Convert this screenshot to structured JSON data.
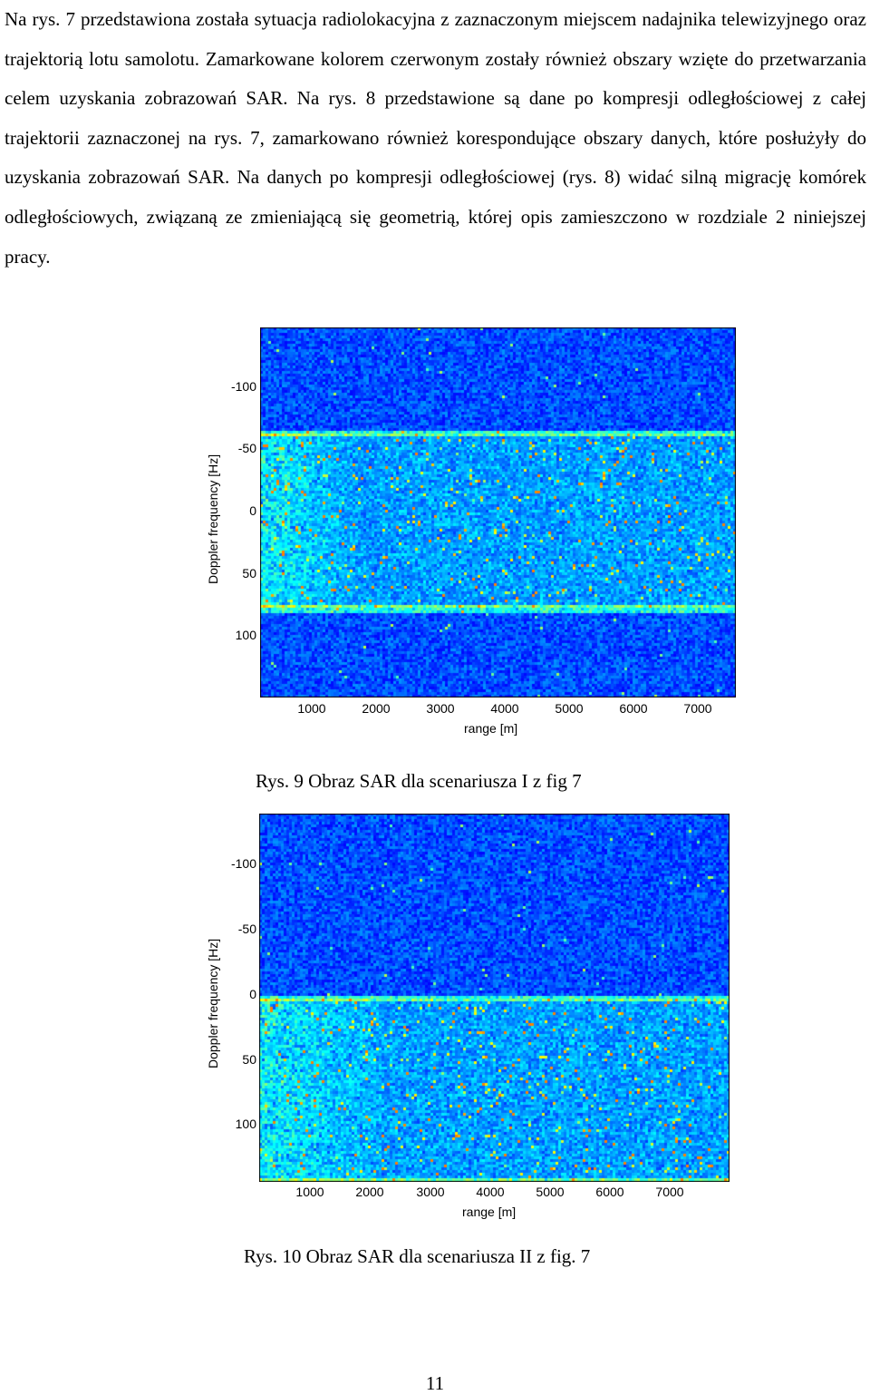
{
  "paragraph": "Na rys. 7 przedstawiona została sytuacja radiolokacyjna z zaznaczonym miejscem nadajnika telewizyjnego oraz trajektorią lotu samolotu. Zamarkowane kolorem czerwonym zostały również obszary wzięte do przetwarzania celem uzyskania zobrazowań SAR. Na rys. 8 przedstawione są dane po kompresji odległościowej z całej trajektorii zaznaczonej na rys. 7, zamarkowano również korespondujące obszary danych, które posłużyły do uzyskania zobrazowań SAR. Na danych po kompresji odległościowej (rys. 8) widać silną migrację komórek odległościowych, związaną ze zmieniającą się geometrią, której opis zamieszczono w rozdziale 2 niniejszej pracy.",
  "figures": [
    {
      "caption": "Rys. 9 Obraz SAR dla scenariusza I z fig 7",
      "colormap": "jet",
      "chart_data": {
        "type": "heatmap",
        "xlabel": "range [m]",
        "ylabel": "Doppler frequency [Hz]",
        "x_ticks": [
          "1000",
          "2000",
          "3000",
          "4000",
          "5000",
          "6000",
          "7000"
        ],
        "y_ticks": [
          "-100",
          "-50",
          "0",
          "50",
          "100"
        ],
        "xlim": [
          200,
          7600
        ],
        "ylim": [
          -150,
          150
        ],
        "y_inverted": true,
        "bright_band_doppler": [
          -65,
          77
        ],
        "strong_region_range": [
          200,
          1700
        ]
      }
    },
    {
      "caption": "Rys. 10 Obraz SAR dla scenariusza II z fig. 7",
      "colormap": "jet",
      "chart_data": {
        "type": "heatmap",
        "xlabel": "range [m]",
        "ylabel": "Doppler frequency [Hz]",
        "x_ticks": [
          "1000",
          "2000",
          "3000",
          "4000",
          "5000",
          "6000",
          "7000"
        ],
        "y_ticks": [
          "-100",
          "-50",
          "0",
          "50",
          "100"
        ],
        "xlim": [
          200,
          7900
        ],
        "ylim": [
          -150,
          130
        ],
        "y_inverted": true,
        "bright_band_doppler": [
          -10,
          128
        ],
        "strong_region_range": [
          200,
          2400
        ]
      }
    }
  ],
  "page_number": "11"
}
